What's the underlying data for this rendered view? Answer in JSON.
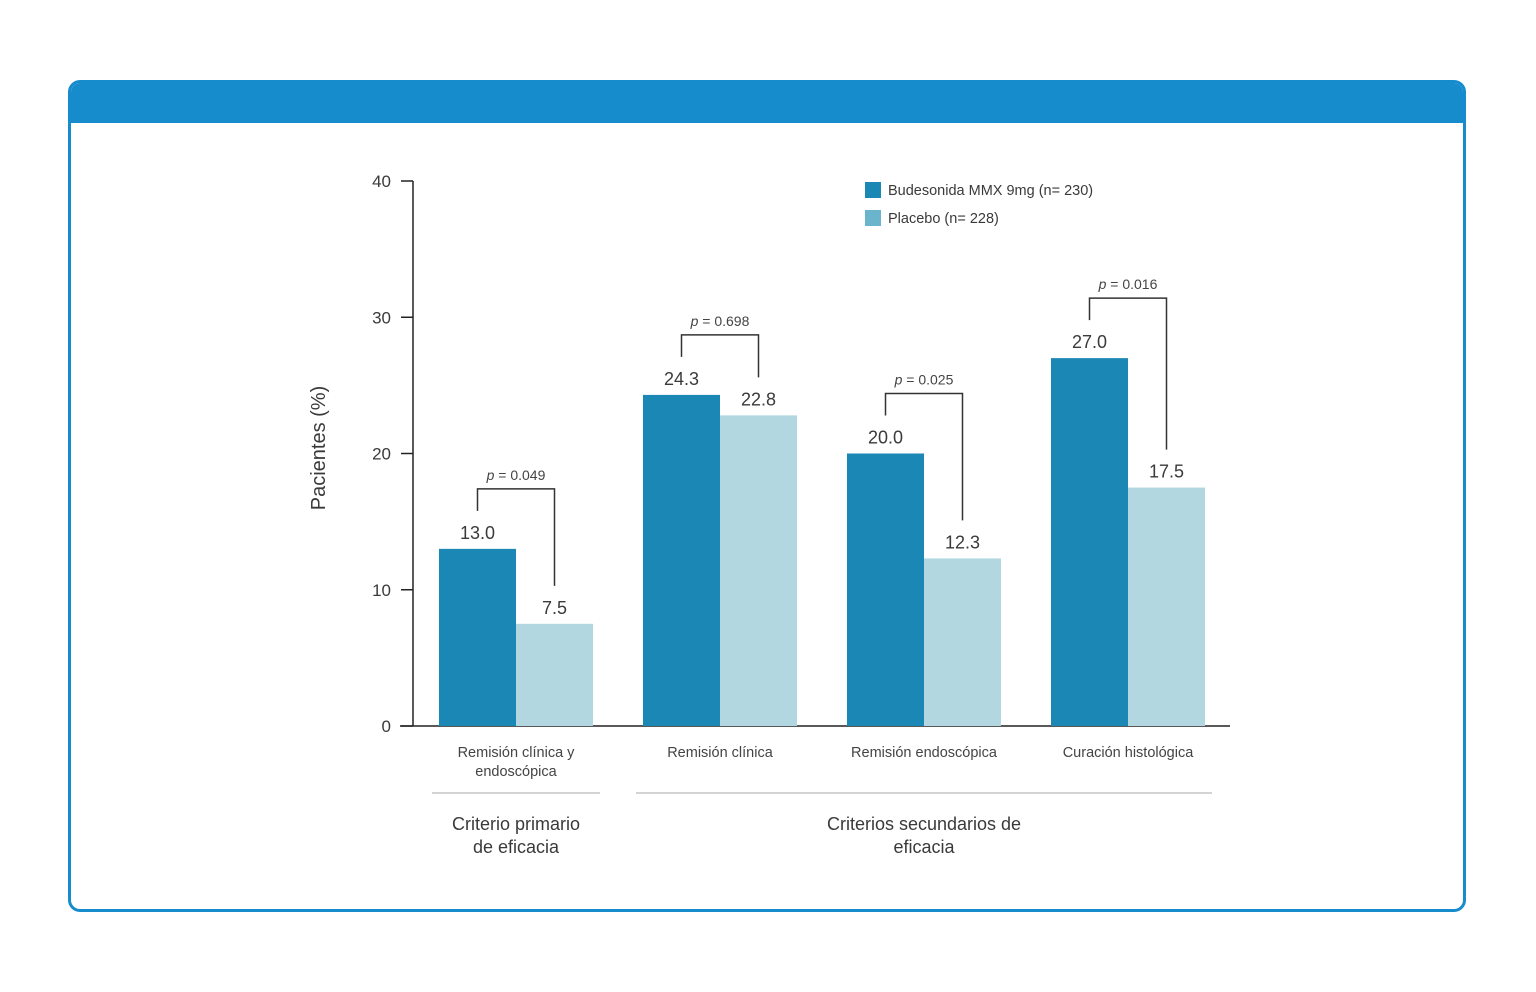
{
  "colors": {
    "frame": "#178ccd",
    "budesonida": "#1a87b4",
    "placebo": "#b3d7e1",
    "placebo_legend": "#6ab5cc",
    "text": "#3a3a3a"
  },
  "chart_data": {
    "type": "bar",
    "ylabel": "Pacientes (%)",
    "ylim": [
      0,
      40
    ],
    "yticks": [
      0,
      10,
      20,
      30,
      40
    ],
    "categories": [
      [
        "Remisión clínica y",
        "endoscópica"
      ],
      [
        "Remisión clínica"
      ],
      [
        "Remisión endoscópica"
      ],
      [
        "Curación histológica"
      ]
    ],
    "series": [
      {
        "name": "Budesonida MMX 9mg (n= 230)",
        "values": [
          13.0,
          24.3,
          20.0,
          27.0
        ],
        "labels": [
          "13.0",
          "24.3",
          "20.0",
          "27.0"
        ]
      },
      {
        "name": "Placebo (n= 228)",
        "values": [
          7.5,
          22.8,
          12.3,
          17.5
        ],
        "labels": [
          "7.5",
          "22.8",
          "12.3",
          "17.5"
        ]
      }
    ],
    "p_values": [
      "0.049",
      "0.698",
      "0.025",
      "0.016"
    ],
    "groups": [
      {
        "label": [
          "Criterio primario",
          "de eficacia"
        ],
        "categories": [
          0
        ]
      },
      {
        "label": [
          "Criterios secundarios de",
          "eficacia"
        ],
        "categories": [
          1,
          2,
          3
        ]
      }
    ],
    "legend": "top-right",
    "grid": false
  }
}
